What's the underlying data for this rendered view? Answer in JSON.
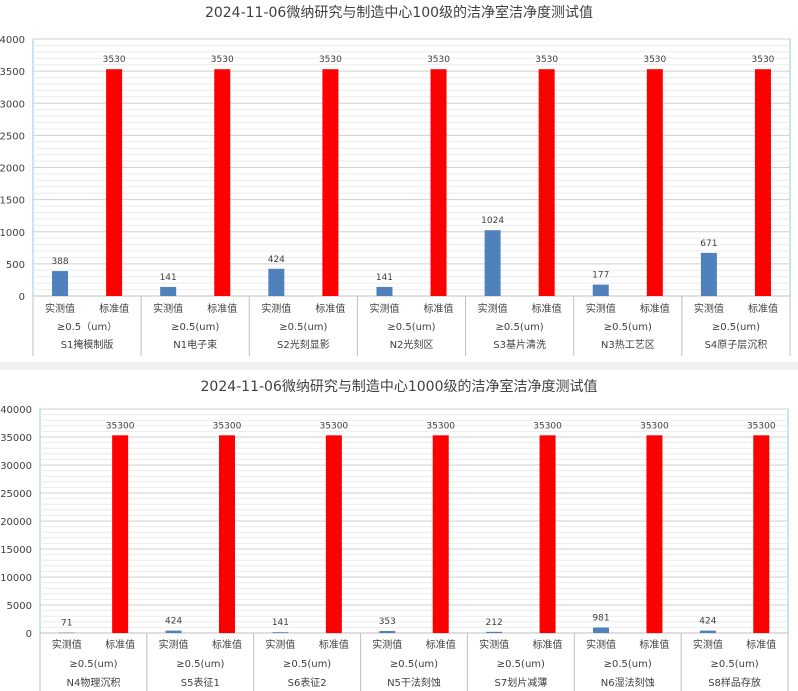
{
  "chart_data": [
    {
      "type": "bar",
      "title": "2024-11-06微纳研究与制造中心100级的洁净室洁净度测试值",
      "xlabel": "",
      "ylabel": "",
      "ylim": [
        0,
        4000
      ],
      "yticks": [
        0,
        500,
        1000,
        1500,
        2000,
        2500,
        3000,
        3500,
        4000
      ],
      "grid": true,
      "series_labels": [
        "实测值",
        "标准值"
      ],
      "groups": [
        {
          "size": "≥0.5（um）",
          "name": "S1掩模制版",
          "values": [
            388,
            3530
          ]
        },
        {
          "size": "≥0.5(um)",
          "name": "N1电子束",
          "values": [
            141,
            3530
          ]
        },
        {
          "size": "≥0.5(um)",
          "name": "S2光刻显影",
          "values": [
            424,
            3530
          ]
        },
        {
          "size": "≥0.5(um)",
          "name": "N2光刻区",
          "values": [
            141,
            3530
          ]
        },
        {
          "size": "≥0.5(um)",
          "name": "S3基片清洗",
          "values": [
            1024,
            3530
          ]
        },
        {
          "size": "≥0.5(um)",
          "name": "N3热工艺区",
          "values": [
            177,
            3530
          ]
        },
        {
          "size": "≥0.5(um)",
          "name": "S4原子层沉积",
          "values": [
            671,
            3530
          ]
        }
      ]
    },
    {
      "type": "bar",
      "title": "2024-11-06微纳研究与制造中心1000级的洁净室洁净度测试值",
      "xlabel": "",
      "ylabel": "",
      "ylim": [
        0,
        40000
      ],
      "yticks": [
        0,
        5000,
        10000,
        15000,
        20000,
        25000,
        30000,
        35000,
        40000
      ],
      "grid": true,
      "series_labels": [
        "实测值",
        "标准值"
      ],
      "groups": [
        {
          "size": "≥0.5(um)",
          "name": "N4物理沉积",
          "values": [
            71,
            35300
          ]
        },
        {
          "size": "≥0.5(um)",
          "name": "S5表征1",
          "values": [
            424,
            35300
          ]
        },
        {
          "size": "≥0.5(um)",
          "name": "S6表征2",
          "values": [
            141,
            35300
          ]
        },
        {
          "size": "≥0.5(um)",
          "name": "N5干法刻蚀",
          "values": [
            353,
            35300
          ]
        },
        {
          "size": "≥0.5(um)",
          "name": "S7划片减薄",
          "values": [
            212,
            35300
          ]
        },
        {
          "size": "≥0.5(um)",
          "name": "N6湿法刻蚀",
          "values": [
            981,
            35300
          ]
        },
        {
          "size": "≥0.5(um)",
          "name": "S8样品存放",
          "values": [
            424,
            35300
          ]
        }
      ]
    }
  ],
  "colors": {
    "measured": "#4f81bd",
    "standard": "#ff0000",
    "axis": "#404040",
    "grid": "#d9d9d9",
    "plot_border": "#9dc3e6"
  }
}
